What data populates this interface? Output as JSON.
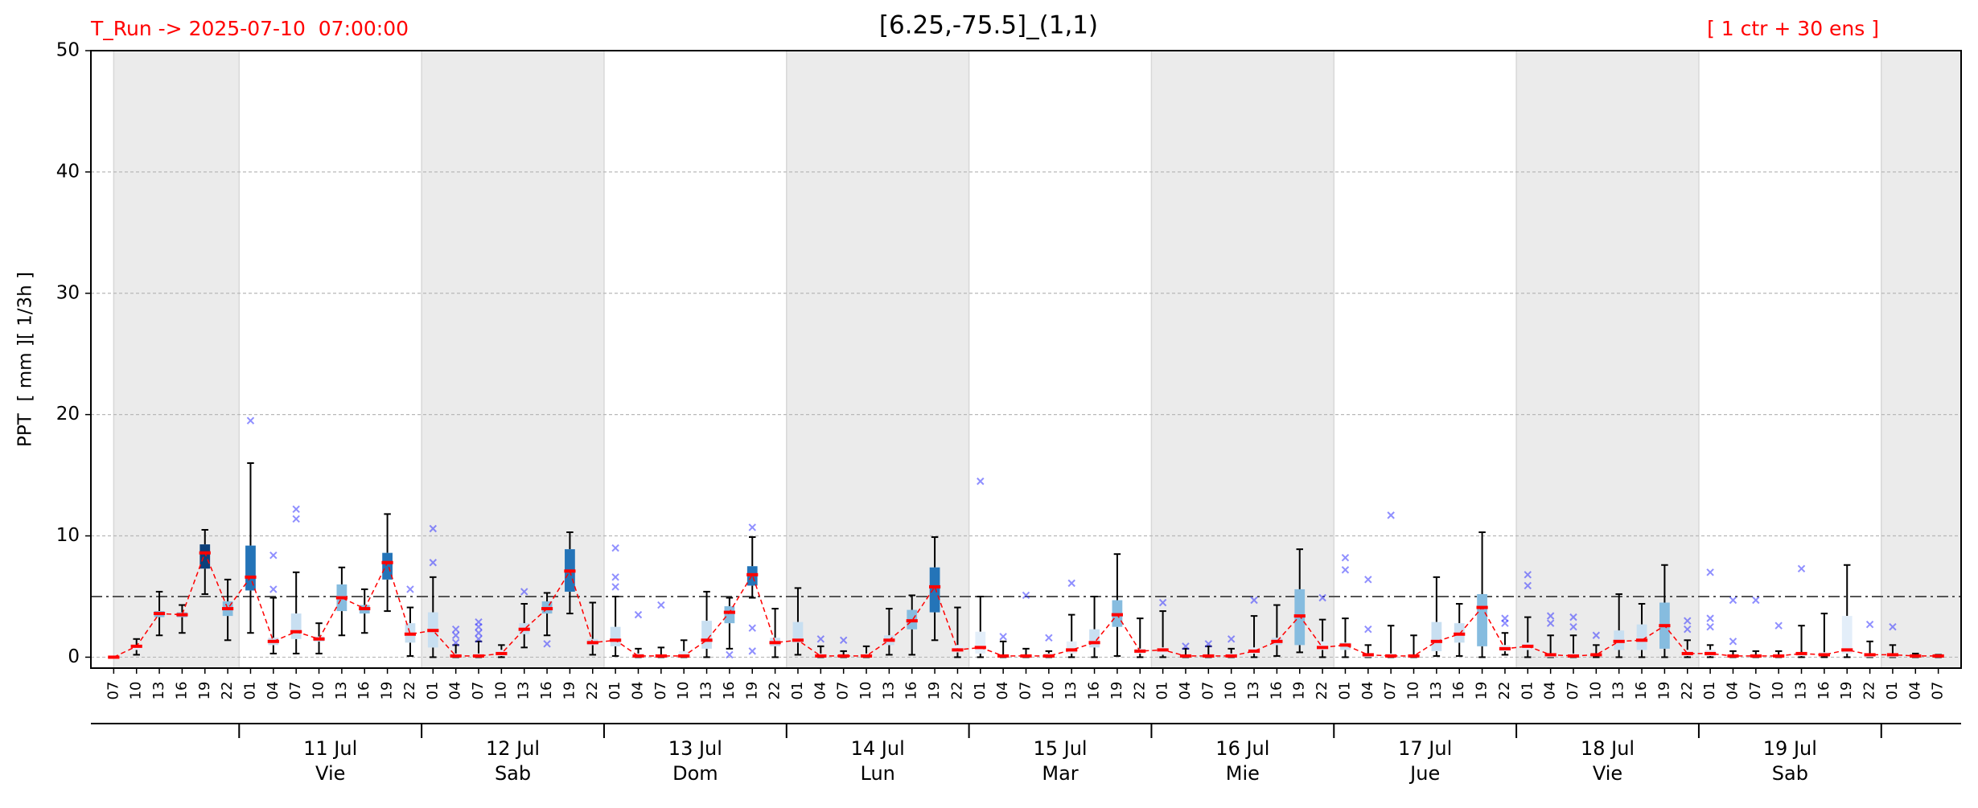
{
  "chart_data": {
    "type": "box",
    "title": "[6.25,-75.5]_(1,1)",
    "run_label": "T_Run -> 2025-07-10  07:00:00",
    "members_label": "[ 1 ctr + 30 ens ]",
    "ylabel": "PPT  [ mm ][ 1/3h ]",
    "ylim": [
      -0.9,
      50
    ],
    "yticks": [
      0,
      10,
      20,
      30,
      40,
      50
    ],
    "grid": true,
    "threshold": 5,
    "categories": [
      "07",
      "10",
      "13",
      "16",
      "19",
      "22",
      "01",
      "04",
      "07",
      "10",
      "13",
      "16",
      "19",
      "22",
      "01",
      "04",
      "07",
      "10",
      "13",
      "16",
      "19",
      "22",
      "01",
      "04",
      "07",
      "10",
      "13",
      "16",
      "19",
      "22",
      "01",
      "04",
      "07",
      "10",
      "13",
      "16",
      "19",
      "22",
      "01",
      "04",
      "07",
      "10",
      "13",
      "16",
      "19",
      "22",
      "01",
      "04",
      "07",
      "10",
      "13",
      "16",
      "19",
      "22",
      "01",
      "04",
      "07",
      "10",
      "13",
      "16",
      "19",
      "22",
      "01",
      "04",
      "07",
      "10",
      "13",
      "16",
      "19",
      "22",
      "01",
      "04",
      "07",
      "10",
      "13",
      "16",
      "19",
      "22",
      "01",
      "04",
      "07"
    ],
    "days": [
      {
        "date": "11 Jul",
        "weekday": "Vie"
      },
      {
        "date": "12 Jul",
        "weekday": "Sab"
      },
      {
        "date": "13 Jul",
        "weekday": "Dom"
      },
      {
        "date": "14 Jul",
        "weekday": "Lun"
      },
      {
        "date": "15 Jul",
        "weekday": "Mar"
      },
      {
        "date": "16 Jul",
        "weekday": "Mie"
      },
      {
        "date": "17 Jul",
        "weekday": "Jue"
      },
      {
        "date": "18 Jul",
        "weekday": "Vie"
      },
      {
        "date": "19 Jul",
        "weekday": "Sab"
      }
    ],
    "low": [
      0,
      0.2,
      1.8,
      2.0,
      5.2,
      1.4,
      2.0,
      0.3,
      0.3,
      0.3,
      1.8,
      2.0,
      3.8,
      0.1,
      0,
      0,
      0,
      0,
      0.8,
      1.8,
      3.6,
      0.2,
      0.1,
      0,
      0,
      0,
      0,
      0.7,
      4.9,
      0,
      0.2,
      0,
      0,
      0,
      0.2,
      0.2,
      1.4,
      0,
      0,
      0,
      0,
      0,
      0,
      0,
      0.1,
      0,
      0,
      0,
      0,
      0,
      0,
      0.1,
      0.4,
      0,
      0,
      0,
      0,
      0,
      0.1,
      0.1,
      0,
      0.2,
      0,
      0,
      0,
      0,
      0,
      0,
      0,
      0,
      0,
      0,
      0,
      0,
      0,
      0,
      0,
      0,
      0,
      0,
      0
    ],
    "q1": [
      0,
      0.6,
      3.3,
      3.3,
      7.3,
      3.4,
      5.5,
      1.0,
      1.5,
      1.3,
      3.8,
      3.6,
      6.4,
      1.2,
      0.8,
      0,
      0,
      0.1,
      1.9,
      3.6,
      5.4,
      1.0,
      0.9,
      0,
      0,
      0.1,
      0.7,
      2.8,
      5.9,
      0.9,
      1.2,
      0,
      0,
      0,
      1.0,
      2.3,
      3.7,
      0.4,
      0.3,
      0,
      0,
      0,
      0.3,
      0.8,
      2.5,
      0.3,
      0.2,
      0,
      0,
      0,
      0.3,
      1.0,
      1.0,
      0.6,
      0.6,
      0,
      0,
      0,
      0.5,
      1.2,
      0.9,
      0.5,
      0.6,
      0,
      0,
      0.1,
      0.6,
      0.6,
      0.7,
      0.1,
      0.1,
      0,
      0,
      0,
      0.1,
      0.1,
      0.3,
      0,
      0,
      0,
      0
    ],
    "median": [
      0,
      0.9,
      3.6,
      3.5,
      8.6,
      4.0,
      6.6,
      1.3,
      2.1,
      1.5,
      4.9,
      4.0,
      7.8,
      1.9,
      2.2,
      0.1,
      0.1,
      0.3,
      2.3,
      4.0,
      7.1,
      1.2,
      1.4,
      0.1,
      0.1,
      0.1,
      1.4,
      3.7,
      6.8,
      1.2,
      1.4,
      0.1,
      0.1,
      0.1,
      1.4,
      3.0,
      5.8,
      0.6,
      0.8,
      0.1,
      0.1,
      0.1,
      0.6,
      1.2,
      3.5,
      0.5,
      0.6,
      0.1,
      0.1,
      0.1,
      0.5,
      1.3,
      3.4,
      0.8,
      1.0,
      0.2,
      0.1,
      0.1,
      1.3,
      1.9,
      4.1,
      0.7,
      0.9,
      0.2,
      0.1,
      0.2,
      1.3,
      1.4,
      2.6,
      0.3,
      0.3,
      0.1,
      0.1,
      0.1,
      0.3,
      0.2,
      0.6,
      0.2,
      0.2,
      0.1,
      0.1
    ],
    "q3": [
      0,
      1.0,
      3.8,
      3.7,
      9.3,
      4.6,
      9.2,
      1.6,
      3.6,
      1.7,
      6.0,
      4.3,
      8.6,
      2.8,
      3.7,
      0.3,
      0.3,
      0.6,
      2.8,
      4.6,
      8.9,
      1.5,
      2.5,
      0.3,
      0.2,
      0.5,
      3.0,
      4.2,
      7.5,
      1.6,
      2.9,
      0.3,
      0.2,
      0.3,
      1.8,
      3.9,
      7.4,
      1.0,
      2.1,
      0.2,
      0.2,
      0.3,
      1.3,
      2.3,
      4.7,
      0.7,
      0.8,
      0.2,
      0.2,
      0.3,
      0.8,
      1.6,
      5.6,
      1.3,
      1.2,
      0.3,
      0.3,
      0.2,
      2.9,
      2.8,
      5.2,
      1.0,
      1.2,
      0.3,
      0.3,
      0.3,
      2.2,
      2.7,
      4.5,
      0.6,
      0.6,
      0.2,
      0.2,
      0.2,
      0.4,
      0.4,
      3.4,
      0.3,
      0.3,
      0.1,
      0.1
    ],
    "high": [
      0,
      1.5,
      5.4,
      4.3,
      10.5,
      6.4,
      16.0,
      4.9,
      7.0,
      2.8,
      7.4,
      5.6,
      11.8,
      4.1,
      6.6,
      1.0,
      1.3,
      1.0,
      4.4,
      5.3,
      10.3,
      4.5,
      5.0,
      0.7,
      0.8,
      1.4,
      5.4,
      4.9,
      9.9,
      4.0,
      5.7,
      0.9,
      0.5,
      0.9,
      4.0,
      5.1,
      9.9,
      4.1,
      5.0,
      1.3,
      0.7,
      0.5,
      3.5,
      5.0,
      8.5,
      3.2,
      3.8,
      0.7,
      0.9,
      0.7,
      3.4,
      4.3,
      8.9,
      3.1,
      3.2,
      1.0,
      2.6,
      1.8,
      6.6,
      4.4,
      10.3,
      2.0,
      3.3,
      1.8,
      1.8,
      1.0,
      5.2,
      4.4,
      7.6,
      1.4,
      1.0,
      0.5,
      0.5,
      0.5,
      2.6,
      3.6,
      7.6,
      1.3,
      1.0,
      0.3,
      0.2
    ],
    "outliers": [
      [],
      [],
      [],
      [],
      [],
      [],
      [
        19.5
      ],
      [
        8.4,
        5.6
      ],
      [
        12.2,
        11.4
      ],
      [],
      [],
      [],
      [],
      [
        5.6
      ],
      [
        10.6,
        7.8
      ],
      [
        2.3,
        1.8,
        1.2
      ],
      [
        2.9,
        2.5,
        2.0,
        1.5
      ],
      [],
      [
        5.4
      ],
      [
        1.1
      ],
      [],
      [],
      [
        9.0,
        6.6,
        5.8
      ],
      [
        3.5
      ],
      [
        4.3
      ],
      [],
      [],
      [
        0.2
      ],
      [
        10.7,
        2.4,
        0.5
      ],
      [],
      [],
      [
        1.5
      ],
      [
        1.4
      ],
      [],
      [],
      [],
      [],
      [],
      [
        14.5
      ],
      [
        1.7
      ],
      [
        5.1
      ],
      [
        1.6
      ],
      [
        6.1
      ],
      [],
      [],
      [],
      [
        4.5
      ],
      [
        0.9
      ],
      [
        1.1
      ],
      [
        1.5
      ],
      [
        4.7
      ],
      [],
      [],
      [
        4.9
      ],
      [
        8.2,
        7.2
      ],
      [
        2.3,
        6.4
      ],
      [
        11.7
      ],
      [],
      [],
      [],
      [],
      [
        3.2,
        2.8
      ],
      [
        6.8,
        5.9
      ],
      [
        3.4,
        2.8
      ],
      [
        3.3,
        2.5
      ],
      [
        1.8
      ],
      [],
      [],
      [],
      [
        3.0,
        2.3
      ],
      [
        7.0,
        3.2,
        2.5
      ],
      [
        4.7,
        1.3
      ],
      [
        4.7
      ],
      [
        2.6
      ],
      [
        7.3
      ],
      [],
      [],
      [
        2.7
      ],
      [
        2.5
      ],
      [],
      []
    ]
  }
}
